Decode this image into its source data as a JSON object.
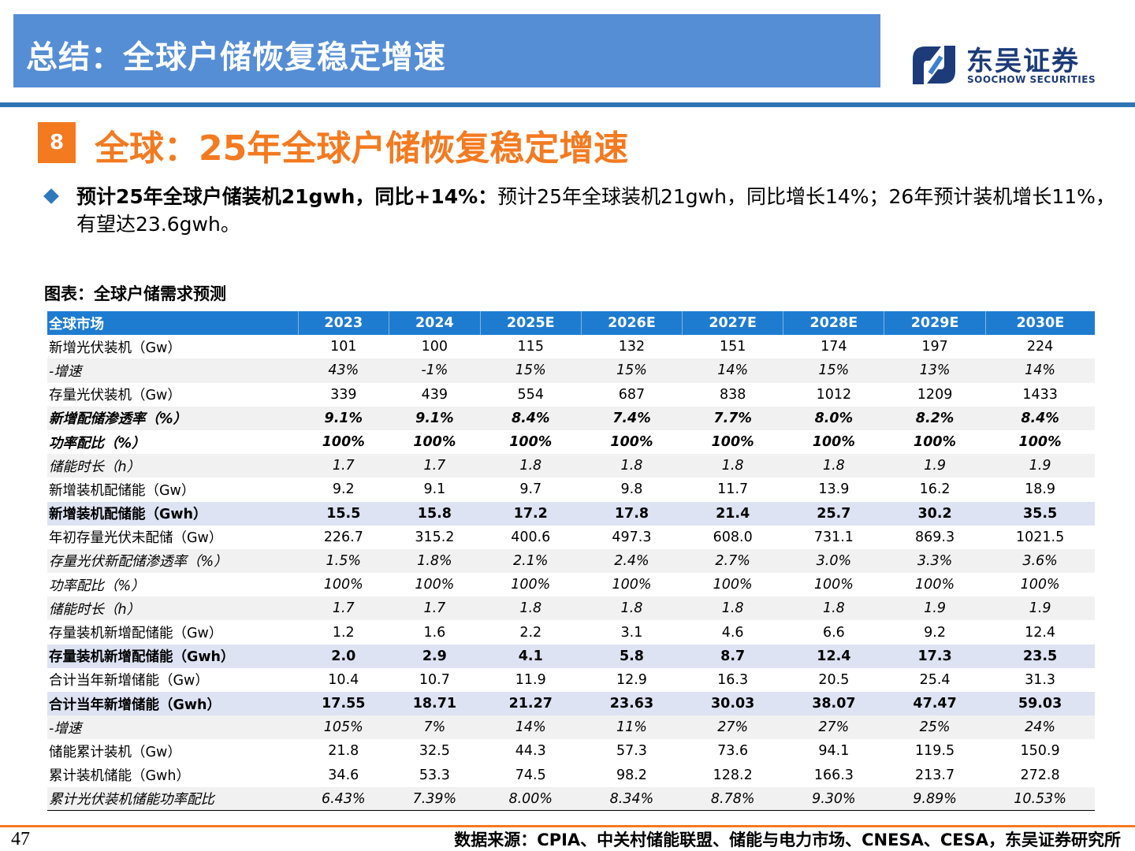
{
  "header": {
    "title": "总结：全球户储恢复稳定增速",
    "logo_cn": "东吴证券",
    "logo_en": "SOOCHOW SECURITIES"
  },
  "section": {
    "number": "8",
    "title": "全球：25年全球户储恢复稳定增速"
  },
  "bullet": {
    "bold": "预计25年全球户储装机21gwh，同比+14%：",
    "text": "预计25年全球装机21gwh，同比增长14%；26年预计装机增长11%，有望达23.6gwh。"
  },
  "table": {
    "caption": "图表：全球户储需求预测",
    "headers": [
      "全球市场",
      "2023",
      "2024",
      "2025E",
      "2026E",
      "2027E",
      "2028E",
      "2029E",
      "2030E"
    ],
    "rows": [
      {
        "style": "normal",
        "cells": [
          "新增光伏装机（Gw）",
          "101",
          "100",
          "115",
          "132",
          "151",
          "174",
          "197",
          "224"
        ]
      },
      {
        "style": "it stripe",
        "cells": [
          "-增速",
          "43%",
          "-1%",
          "15%",
          "15%",
          "14%",
          "15%",
          "13%",
          "14%"
        ]
      },
      {
        "style": "normal",
        "cells": [
          "存量光伏装机（Gw）",
          "339",
          "439",
          "554",
          "687",
          "838",
          "1012",
          "1209",
          "1433"
        ]
      },
      {
        "style": "bi stripe",
        "cells": [
          "新增配储渗透率（%）",
          "9.1%",
          "9.1%",
          "8.4%",
          "7.4%",
          "7.7%",
          "8.0%",
          "8.2%",
          "8.4%"
        ]
      },
      {
        "style": "bi",
        "cells": [
          "功率配比（%）",
          "100%",
          "100%",
          "100%",
          "100%",
          "100%",
          "100%",
          "100%",
          "100%"
        ]
      },
      {
        "style": "it stripe",
        "cells": [
          "储能时长（h）",
          "1.7",
          "1.7",
          "1.8",
          "1.8",
          "1.8",
          "1.8",
          "1.9",
          "1.9"
        ]
      },
      {
        "style": "normal",
        "cells": [
          "新增装机配储能（Gw）",
          "9.2",
          "9.1",
          "9.7",
          "9.8",
          "11.7",
          "13.9",
          "16.2",
          "18.9"
        ]
      },
      {
        "style": "hl",
        "cells": [
          "新增装机配储能（Gwh）",
          "15.5",
          "15.8",
          "17.2",
          "17.8",
          "21.4",
          "25.7",
          "30.2",
          "35.5"
        ]
      },
      {
        "style": "normal",
        "cells": [
          "年初存量光伏未配储（Gw）",
          "226.7",
          "315.2",
          "400.6",
          "497.3",
          "608.0",
          "731.1",
          "869.3",
          "1021.5"
        ]
      },
      {
        "style": "it stripe",
        "cells": [
          "存量光伏新配储渗透率（%）",
          "1.5%",
          "1.8%",
          "2.1%",
          "2.4%",
          "2.7%",
          "3.0%",
          "3.3%",
          "3.6%"
        ]
      },
      {
        "style": "it",
        "cells": [
          "功率配比（%）",
          "100%",
          "100%",
          "100%",
          "100%",
          "100%",
          "100%",
          "100%",
          "100%"
        ]
      },
      {
        "style": "it stripe",
        "cells": [
          "储能时长（h）",
          "1.7",
          "1.7",
          "1.8",
          "1.8",
          "1.8",
          "1.8",
          "1.9",
          "1.9"
        ]
      },
      {
        "style": "normal",
        "cells": [
          "存量装机新增配储能（Gw）",
          "1.2",
          "1.6",
          "2.2",
          "3.1",
          "4.6",
          "6.6",
          "9.2",
          "12.4"
        ]
      },
      {
        "style": "hl",
        "cells": [
          "存量装机新增配储能（Gwh）",
          "2.0",
          "2.9",
          "4.1",
          "5.8",
          "8.7",
          "12.4",
          "17.3",
          "23.5"
        ]
      },
      {
        "style": "normal",
        "cells": [
          "合计当年新增储能（Gw）",
          "10.4",
          "10.7",
          "11.9",
          "12.9",
          "16.3",
          "20.5",
          "25.4",
          "31.3"
        ]
      },
      {
        "style": "hl",
        "cells": [
          "合计当年新增储能（Gwh）",
          "17.55",
          "18.71",
          "21.27",
          "23.63",
          "30.03",
          "38.07",
          "47.47",
          "59.03"
        ]
      },
      {
        "style": "it stripe",
        "cells": [
          "-增速",
          "105%",
          "7%",
          "14%",
          "11%",
          "27%",
          "27%",
          "25%",
          "24%"
        ]
      },
      {
        "style": "normal",
        "cells": [
          "储能累计装机（Gw）",
          "21.8",
          "32.5",
          "44.3",
          "57.3",
          "73.6",
          "94.1",
          "119.5",
          "150.9"
        ]
      },
      {
        "style": "normal",
        "cells": [
          "累计装机储能（Gwh）",
          "34.6",
          "53.3",
          "74.5",
          "98.2",
          "128.2",
          "166.3",
          "213.7",
          "272.8"
        ]
      },
      {
        "style": "it stripe",
        "cells": [
          "累计光伏装机储能功率配比",
          "6.43%",
          "7.39%",
          "8.00%",
          "8.34%",
          "8.78%",
          "9.30%",
          "9.89%",
          "10.53%"
        ]
      }
    ]
  },
  "footer": {
    "page": "47",
    "source": "数据来源：CPIA、中关村储能联盟、储能与电力市场、CNESA、CESA，东吴证券研究所"
  },
  "colors": {
    "banner": "#558ed5",
    "accent_orange": "#f47a20",
    "table_header": "#1e7cd0",
    "highlight_row": "#dde3f3",
    "logo_navy": "#1d3b79"
  }
}
